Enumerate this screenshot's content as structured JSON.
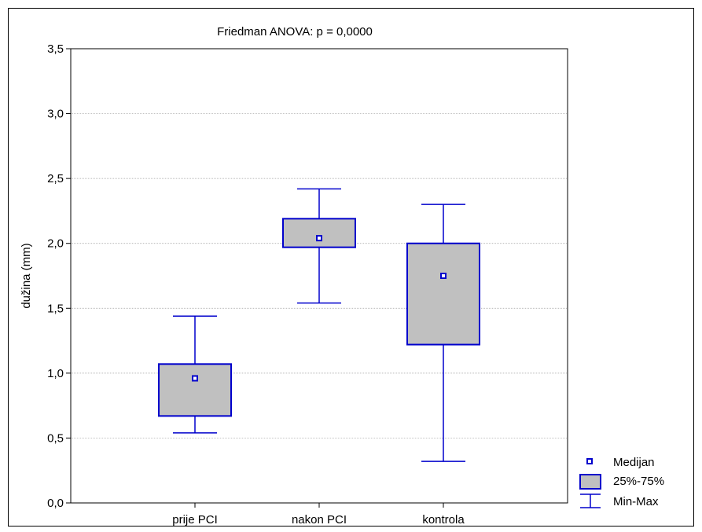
{
  "chart_data": {
    "type": "box",
    "title": "Friedman ANOVA: p = 0,0000",
    "xlabel": "",
    "ylabel": "dužina (mm)",
    "ylim": [
      0,
      3.5
    ],
    "yticks": [
      "0,0",
      "0,5",
      "1,0",
      "1,5",
      "2,0",
      "2,5",
      "3,0",
      "3,5"
    ],
    "ytick_values": [
      0,
      0.5,
      1.0,
      1.5,
      2.0,
      2.5,
      3.0,
      3.5
    ],
    "grid": true,
    "categories": [
      "prije PCI",
      "nakon PCI",
      "kontrola"
    ],
    "boxes": [
      {
        "category": "prije PCI",
        "min": 0.54,
        "q1": 0.67,
        "median": 0.96,
        "q3": 1.07,
        "max": 1.44
      },
      {
        "category": "nakon PCI",
        "min": 1.54,
        "q1": 1.97,
        "median": 2.04,
        "q3": 2.19,
        "max": 2.42
      },
      {
        "category": "kontrola",
        "min": 0.32,
        "q1": 1.22,
        "median": 1.75,
        "q3": 2.0,
        "max": 2.3
      }
    ],
    "legend": {
      "position": "bottom-right",
      "items": [
        "Medijan",
        "25%-75%",
        "Min-Max"
      ]
    },
    "colors": {
      "box_fill": "#c0c0c0",
      "box_stroke": "#0000cc",
      "whisker": "#0000cc",
      "median_marker": "#0000cc",
      "grid": "#a0a0a0"
    }
  }
}
